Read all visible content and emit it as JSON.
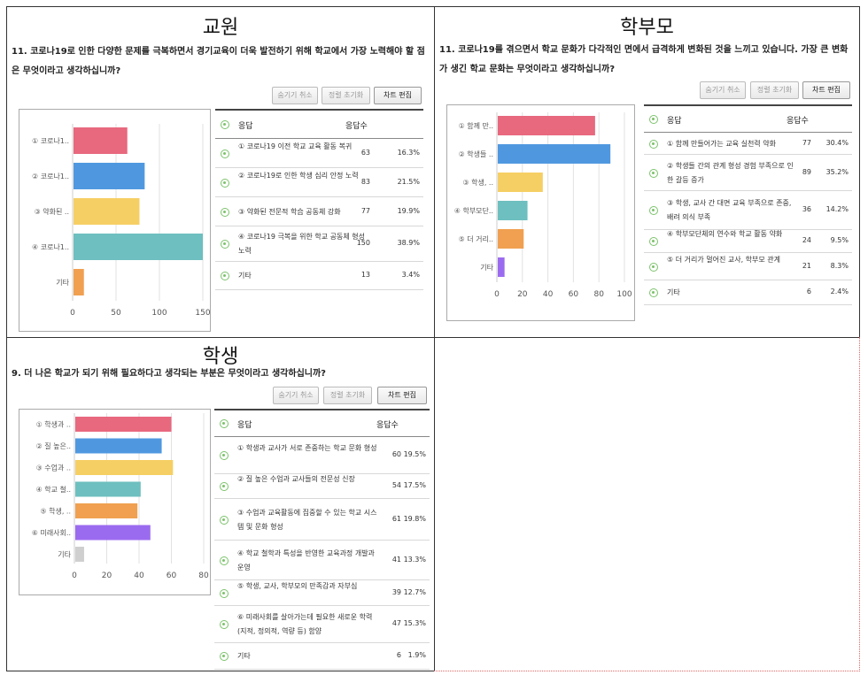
{
  "ui": {
    "hide_cancel": "숨기기 취소",
    "sort_reset": "정렬 초기화",
    "chart_edit": "차트 편집",
    "col_response": "응답",
    "col_count": "응답수"
  },
  "sections": [
    {
      "title": "교원",
      "question": "11. 코로나19로 인한 다양한 문제를 극복하면서 경기교육이 더욱 발전하기 위해 학교에서 가장 노력해야 할 점은 무엇이라고 생각하십니까?",
      "rows": [
        {
          "label": "① 코로나19 이전 학교 교육 활동 복귀",
          "count": "63",
          "pct": "16.3%"
        },
        {
          "label": "② 코로나19로 인한 학생 심리 안정 노력",
          "count": "83",
          "pct": "21.5%"
        },
        {
          "label": "③ 약화된 전문적 학습 공동체 강화",
          "count": "77",
          "pct": "19.9%"
        },
        {
          "label": "④ 코로나19 극복을 위한 학교 공동체 형성 노력",
          "count": "150",
          "pct": "38.9%"
        },
        {
          "label": "기타",
          "count": "13",
          "pct": "3.4%"
        }
      ]
    },
    {
      "title": "학부모",
      "question": "11. 코로나19를 겪으면서 학교 문화가 다각적인 면에서 급격하게 변화된 것을 느끼고 있습니다. 가장 큰 변화가 생긴 학교 문화는 무엇이라고 생각하십니까?",
      "rows": [
        {
          "label": "① 함께 만들어가는 교육 실천력 약화",
          "count": "77",
          "pct": "30.4%"
        },
        {
          "label": "② 학생들 간의 관계 형성 경험 부족으로 인한 갈등 증가",
          "count": "89",
          "pct": "35.2%"
        },
        {
          "label": "③ 학생, 교사 간 대면 교육 부족으로 존중, 배려 의식 부족",
          "count": "36",
          "pct": "14.2%"
        },
        {
          "label": "④ 학부모단체의 연수와 학교 활동 약화",
          "count": "24",
          "pct": "9.5%"
        },
        {
          "label": "⑤ 더 거리가 멀어진 교사, 학부모 관계",
          "count": "21",
          "pct": "8.3%"
        },
        {
          "label": "기타",
          "count": "6",
          "pct": "2.4%"
        }
      ]
    },
    {
      "title": "학생",
      "question": "9. 더 나은 학교가 되기 위해 필요하다고 생각되는 부분은 무엇이라고 생각하십니까?",
      "rows": [
        {
          "label": "① 학생과 교사가 서로 존중하는 학교 문화 형성",
          "count": "60",
          "pct": "19.5%"
        },
        {
          "label": "② 질 높은 수업과 교사들의 전문성 신장",
          "count": "54",
          "pct": "17.5%"
        },
        {
          "label": "③ 수업과 교육활동에 집중할 수 있는 학교 시스템 및 문화 형성",
          "count": "61",
          "pct": "19.8%"
        },
        {
          "label": "④ 학교 철학과 특성을 반영한 교육과정 개발과 운영",
          "count": "41",
          "pct": "13.3%"
        },
        {
          "label": "⑤ 학생, 교사, 학부모의 만족감과 자부심",
          "count": "39",
          "pct": "12.7%"
        },
        {
          "label": "⑥ 미래사회를 살아가는데 필요한 새로운 학력(지적, 정의적, 역량 등) 함양",
          "count": "47",
          "pct": "15.3%"
        },
        {
          "label": "기타",
          "count": "6",
          "pct": "1.9%"
        }
      ]
    }
  ],
  "chart_data": [
    {
      "type": "bar",
      "orientation": "horizontal",
      "categories": [
        "① 코로나1..",
        "② 코로나1..",
        "③ 약화된 ..",
        "④ 코로나1..",
        "기타"
      ],
      "values": [
        63,
        83,
        77,
        150,
        13
      ],
      "xticks": [
        0,
        50,
        100,
        150
      ],
      "xlim": [
        0,
        150
      ],
      "colors": [
        "#e8687e",
        "#4f98e0",
        "#f6cf64",
        "#6ebfbf",
        "#f0a050"
      ]
    },
    {
      "type": "bar",
      "orientation": "horizontal",
      "categories": [
        "① 함께 만..",
        "② 학생들 ..",
        "③ 학생, ..",
        "④ 학부모단..",
        "⑤ 더 거리..",
        "기타"
      ],
      "values": [
        77,
        89,
        36,
        24,
        21,
        6
      ],
      "xticks": [
        0,
        20,
        40,
        60,
        80,
        100
      ],
      "xlim": [
        0,
        100
      ],
      "colors": [
        "#e8687e",
        "#4f98e0",
        "#f6cf64",
        "#6ebfbf",
        "#f0a050",
        "#9b6bef"
      ]
    },
    {
      "type": "bar",
      "orientation": "horizontal",
      "categories": [
        "① 학생과 ..",
        "② 질 높은..",
        "③ 수업과 ..",
        "④ 학교 철..",
        "⑤ 학생, ..",
        "⑥ 미래사회..",
        "기타"
      ],
      "values": [
        60,
        54,
        61,
        41,
        39,
        47,
        6
      ],
      "xticks": [
        0,
        20,
        40,
        60,
        80
      ],
      "xlim": [
        0,
        80
      ],
      "colors": [
        "#e8687e",
        "#4f98e0",
        "#f6cf64",
        "#6ebfbf",
        "#f0a050",
        "#9b6bef",
        "#cfcfcf"
      ]
    }
  ]
}
